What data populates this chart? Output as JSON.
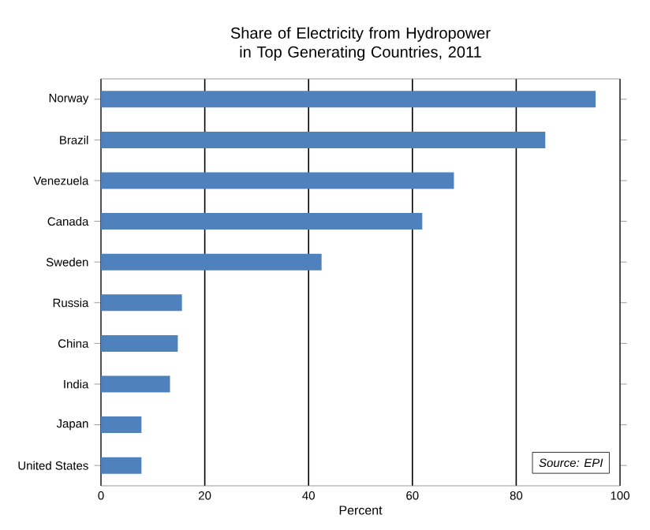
{
  "chart_data": {
    "type": "bar",
    "orientation": "horizontal",
    "title": "Share of Electricity from Hydropower\nin Top Generating Countries, 2011",
    "xlabel": "Percent",
    "categories": [
      "Norway",
      "Brazil",
      "Venezuela",
      "Canada",
      "Sweden",
      "Russia",
      "China",
      "India",
      "Japan",
      "United States"
    ],
    "values": [
      95.3,
      85.6,
      68.0,
      61.9,
      42.5,
      15.6,
      14.8,
      13.3,
      7.8,
      7.8
    ],
    "color": "#4f81bd",
    "xlim": [
      0,
      100
    ],
    "xticks": [
      0,
      20,
      40,
      60,
      80,
      100
    ],
    "grid": "x",
    "annotations": [
      "Source: EPI"
    ]
  }
}
